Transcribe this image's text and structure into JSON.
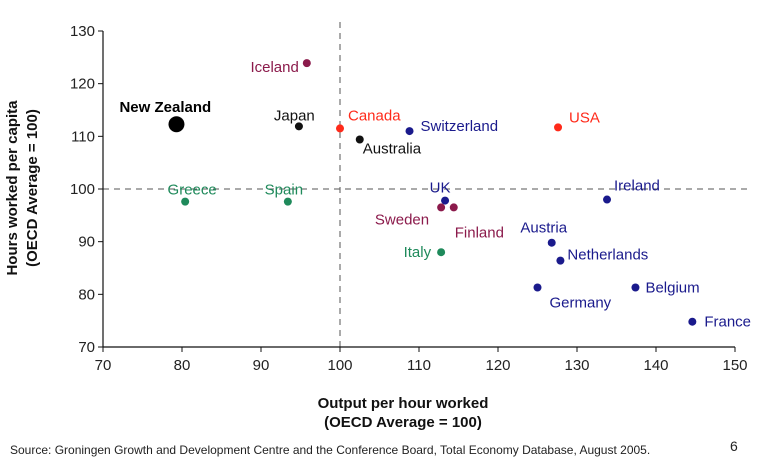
{
  "chart_data": {
    "type": "scatter",
    "title": "",
    "xlabel": [
      "Output per hour worked",
      "(OECD Average = 100)"
    ],
    "ylabel": [
      "Hours worked per capita",
      "(OECD Average = 100)"
    ],
    "xlim": [
      70,
      150
    ],
    "ylim": [
      70,
      130
    ],
    "xticks": [
      70,
      80,
      90,
      100,
      110,
      120,
      130,
      140,
      150
    ],
    "yticks": [
      70,
      80,
      90,
      100,
      110,
      120,
      130
    ],
    "reference_lines": {
      "x": 100,
      "y": 100,
      "style": "dashed"
    },
    "grid": false,
    "colors": {
      "highlight": "#000000",
      "black": "#111111",
      "maroon": "#8b1a4b",
      "green": "#1f8a5b",
      "red": "#ff2a1a",
      "navy": "#1a1a8c"
    },
    "points": [
      {
        "label": "New Zealand",
        "x": 79.3,
        "y": 112.3,
        "color": "highlight",
        "emphasis": true
      },
      {
        "label": "Iceland",
        "x": 95.8,
        "y": 123.9,
        "color": "maroon"
      },
      {
        "label": "Japan",
        "x": 94.8,
        "y": 111.9,
        "color": "black"
      },
      {
        "label": "Canada",
        "x": 100.0,
        "y": 111.5,
        "color": "red"
      },
      {
        "label": "Switzerland",
        "x": 108.8,
        "y": 111.0,
        "color": "navy"
      },
      {
        "label": "USA",
        "x": 127.6,
        "y": 111.7,
        "color": "red"
      },
      {
        "label": "Australia",
        "x": 102.5,
        "y": 109.4,
        "color": "black"
      },
      {
        "label": "Greece",
        "x": 80.4,
        "y": 97.6,
        "color": "green"
      },
      {
        "label": "Spain",
        "x": 93.4,
        "y": 97.6,
        "color": "green"
      },
      {
        "label": "UK",
        "x": 113.3,
        "y": 97.8,
        "color": "navy"
      },
      {
        "label": "Ireland",
        "x": 133.8,
        "y": 98.0,
        "color": "navy"
      },
      {
        "label": "Sweden",
        "x": 112.8,
        "y": 96.5,
        "color": "maroon"
      },
      {
        "label": "Finland",
        "x": 114.4,
        "y": 96.5,
        "color": "maroon"
      },
      {
        "label": "Austria",
        "x": 126.8,
        "y": 89.8,
        "color": "navy"
      },
      {
        "label": "Italy",
        "x": 112.8,
        "y": 88.0,
        "color": "green"
      },
      {
        "label": "Netherlands",
        "x": 127.9,
        "y": 86.4,
        "color": "navy"
      },
      {
        "label": "Germany",
        "x": 125.0,
        "y": 81.3,
        "color": "navy"
      },
      {
        "label": "Belgium",
        "x": 137.4,
        "y": 81.3,
        "color": "navy"
      },
      {
        "label": "France",
        "x": 144.6,
        "y": 74.8,
        "color": "navy"
      }
    ]
  },
  "footer": {
    "source": "Source: Groningen Growth and Development Centre and the Conference Board, Total Economy Database, August 2005.",
    "page_number": "6"
  }
}
